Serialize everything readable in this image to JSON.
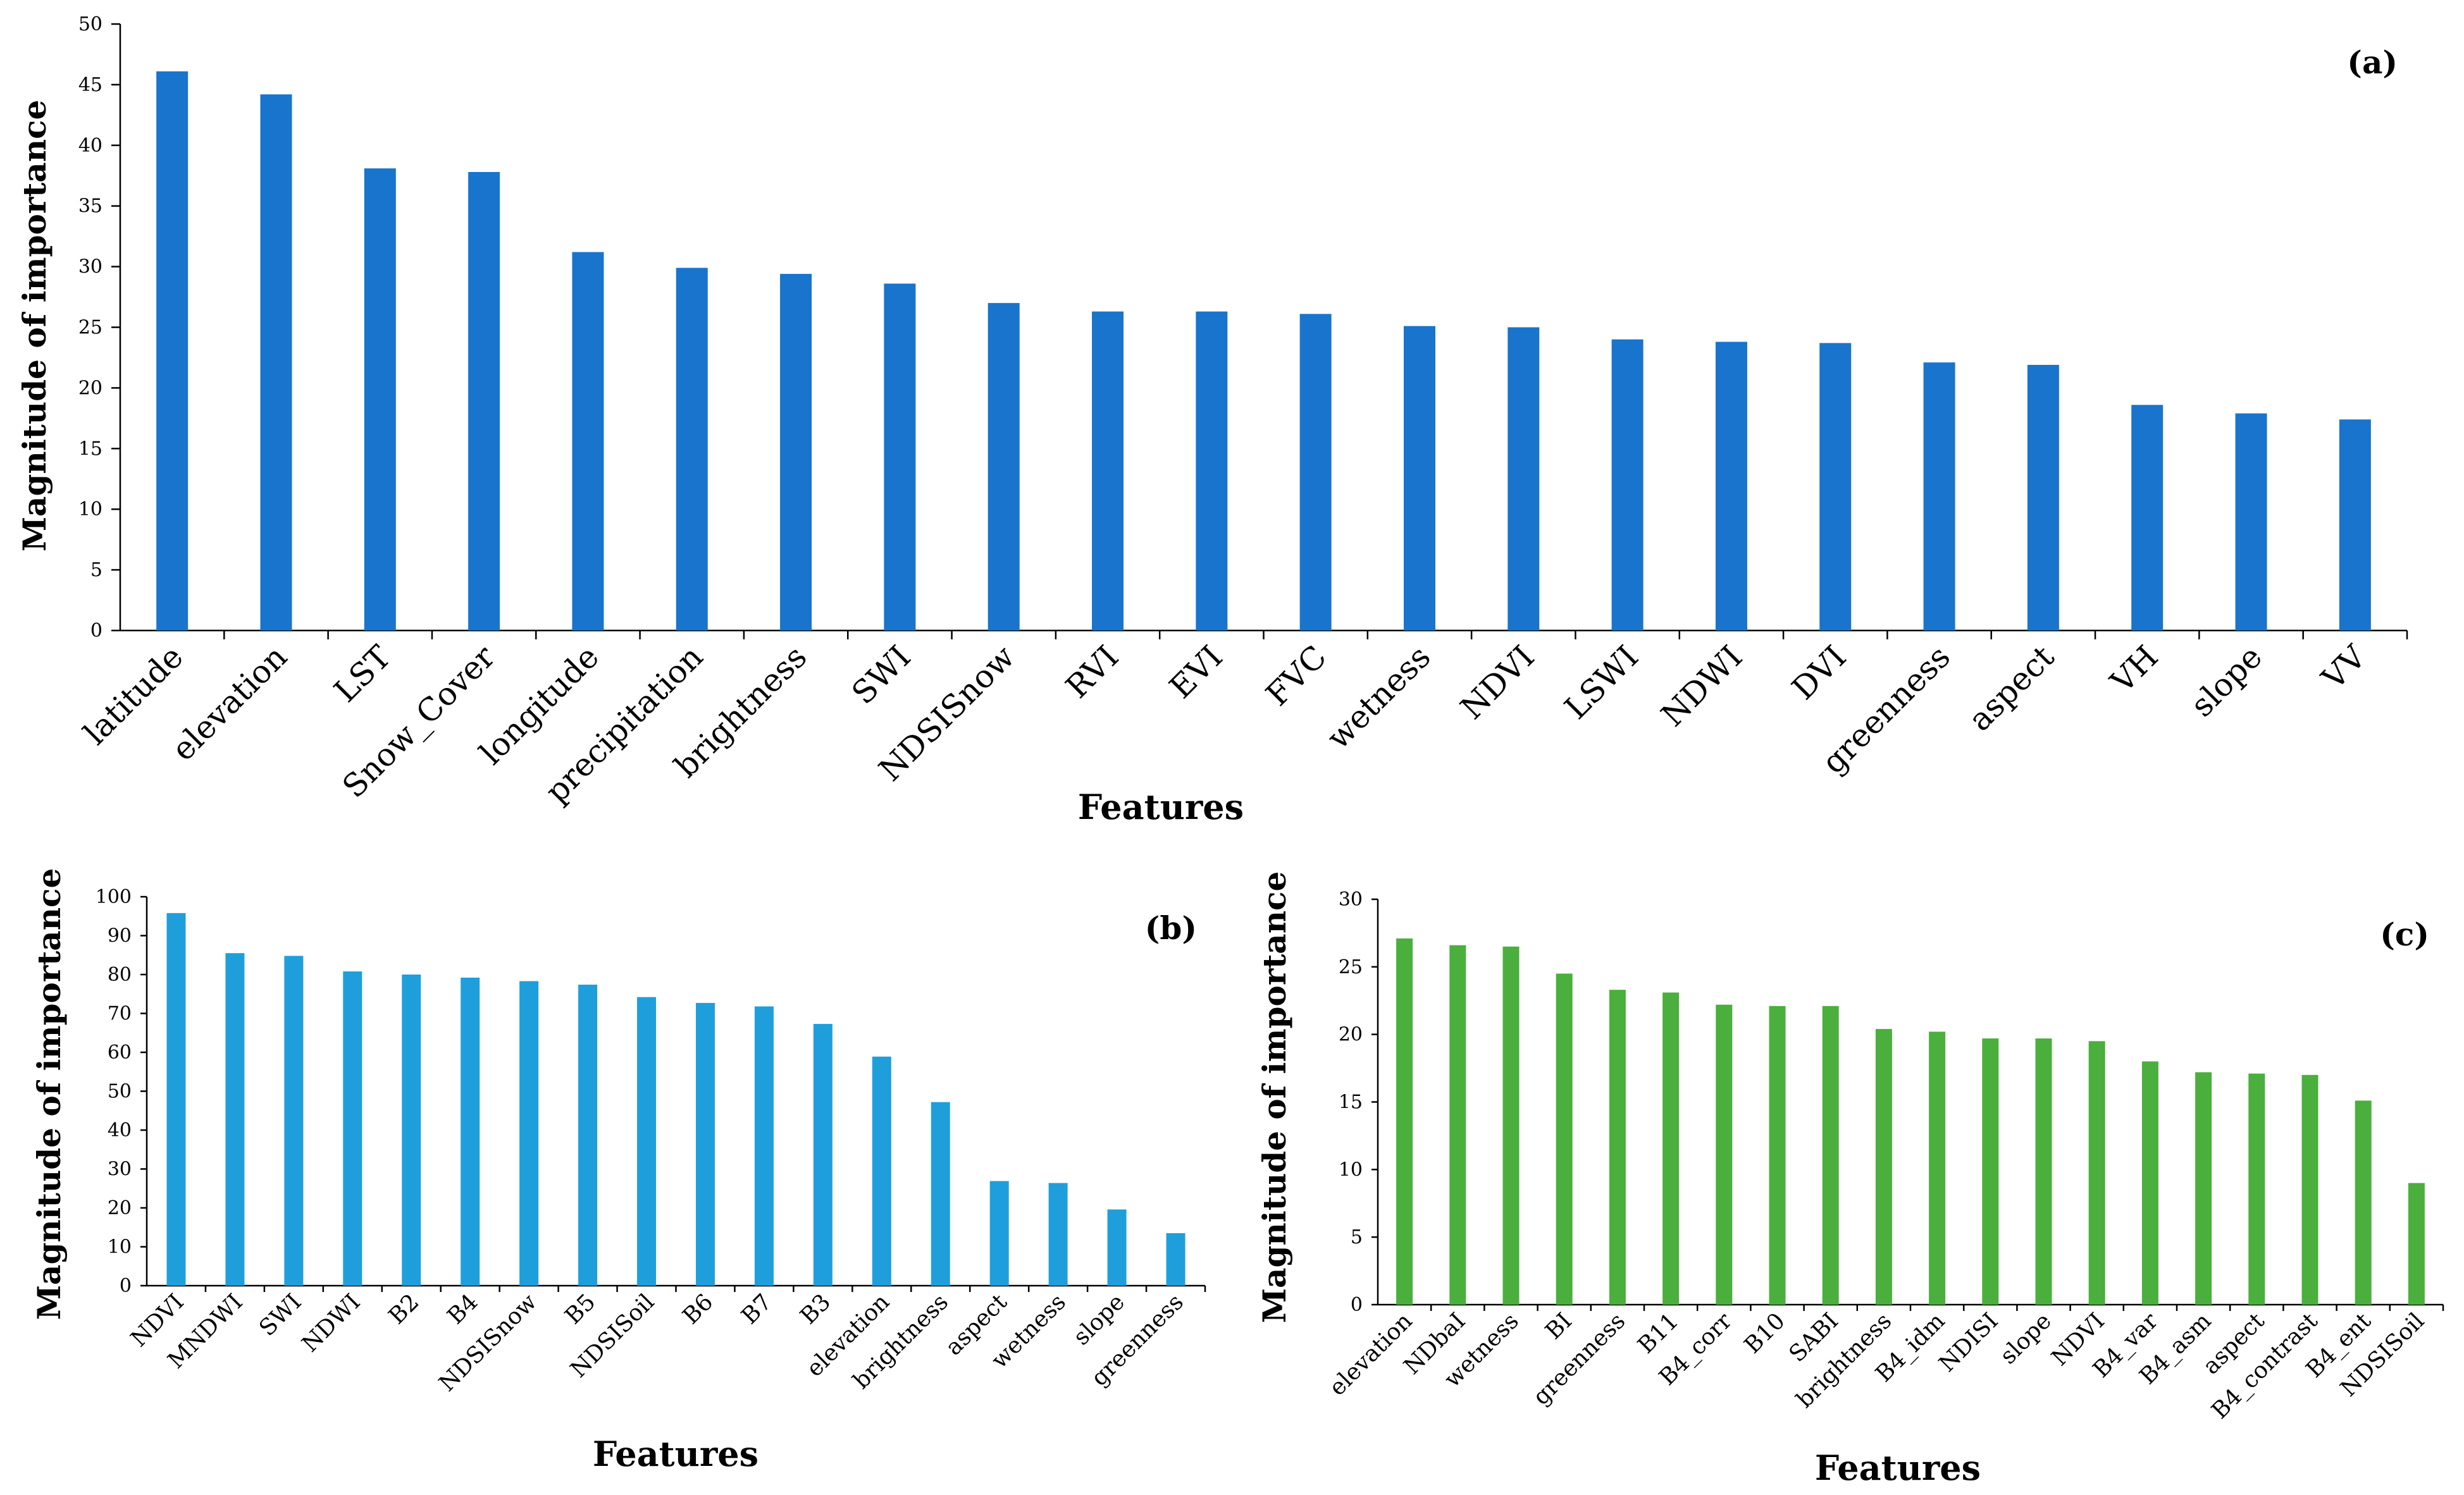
{
  "chart_data": [
    {
      "panel": "(a)",
      "type": "bar",
      "color": "#1874CD",
      "ylabel": "Magnitude of importance",
      "xlabel": "Features",
      "ylim": [
        0,
        50
      ],
      "ytick_step": 5,
      "categories": [
        "latitude",
        "elevation",
        "LST",
        "Snow_Cover",
        "longitude",
        "precipitation",
        "brightness",
        "SWI",
        "NDSISnow",
        "RVI",
        "EVI",
        "FVC",
        "wetness",
        "NDVI",
        "LSWI",
        "NDWI",
        "DVI",
        "greenness",
        "aspect",
        "VH",
        "slope",
        "VV"
      ],
      "values": [
        46.1,
        44.2,
        38.1,
        37.8,
        31.2,
        29.9,
        29.4,
        28.6,
        27.0,
        26.3,
        26.3,
        26.1,
        25.1,
        25.0,
        24.0,
        23.8,
        23.7,
        22.1,
        21.9,
        18.6,
        17.9,
        17.4
      ]
    },
    {
      "panel": "(b)",
      "type": "bar",
      "color": "#1E9FDC",
      "ylabel": "Magnitude of importance",
      "xlabel": "Features",
      "ylim": [
        0,
        100
      ],
      "ytick_step": 10,
      "categories": [
        "NDVI",
        "MNDWI",
        "SWI",
        "NDWI",
        "B2",
        "B4",
        "NDSISnow",
        "B5",
        "NDSISoil",
        "B6",
        "B7",
        "B3",
        "elevation",
        "brightness",
        "aspect",
        "wetness",
        "slope",
        "greenness"
      ],
      "values": [
        95.8,
        85.5,
        84.8,
        80.8,
        80.0,
        79.2,
        78.3,
        77.4,
        74.2,
        72.7,
        71.8,
        67.3,
        58.9,
        47.2,
        26.9,
        26.4,
        19.6,
        13.5
      ]
    },
    {
      "panel": "(c)",
      "type": "bar",
      "color": "#4AAF3C",
      "ylabel": "Magnitude of importance",
      "xlabel": "Features",
      "ylim": [
        0,
        30
      ],
      "ytick_step": 5,
      "categories": [
        "elevation",
        "NDbaI",
        "wetness",
        "BI",
        "greenness",
        "B11",
        "B4_corr",
        "B10",
        "SABI",
        "brightness",
        "B4_idm",
        "NDISI",
        "slope",
        "NDVI",
        "B4_var",
        "B4_asm",
        "aspect",
        "B4_contrast",
        "B4_ent",
        "NDSISoil"
      ],
      "values": [
        27.1,
        26.6,
        26.5,
        24.5,
        23.3,
        23.1,
        22.2,
        22.1,
        22.1,
        20.4,
        20.2,
        19.7,
        19.7,
        19.5,
        18.0,
        17.2,
        17.1,
        17.0,
        15.1,
        9.0
      ]
    }
  ]
}
